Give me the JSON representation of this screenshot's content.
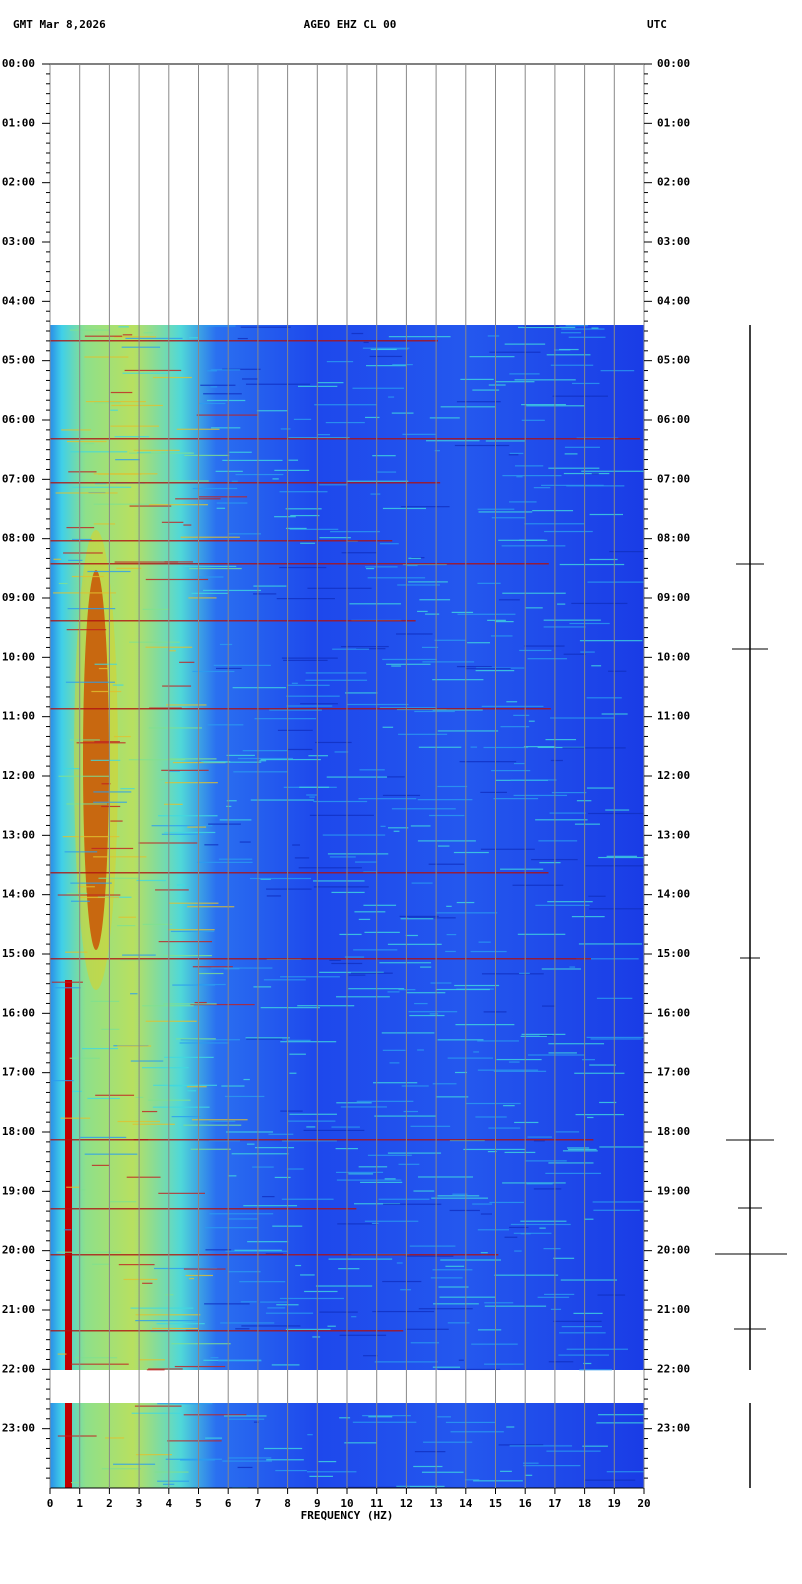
{
  "chart_data": {
    "type": "spectrogram",
    "header_left": "GMT  Mar 8,2026",
    "title": "AGEO EHZ CL 00",
    "header_right": "UTC",
    "xlabel": "FREQUENCY (HZ)",
    "xlim": [
      0,
      20
    ],
    "xticks": [
      0,
      1,
      2,
      3,
      4,
      5,
      6,
      7,
      8,
      9,
      10,
      11,
      12,
      13,
      14,
      15,
      16,
      17,
      18,
      19,
      20
    ],
    "ylim": [
      0,
      24
    ],
    "yticks": [
      {
        "value": 0,
        "label": "00:00"
      },
      {
        "value": 1,
        "label": "01:00"
      },
      {
        "value": 2,
        "label": "02:00"
      },
      {
        "value": 3,
        "label": "03:00"
      },
      {
        "value": 4,
        "label": "04:00"
      },
      {
        "value": 5,
        "label": "05:00"
      },
      {
        "value": 6,
        "label": "06:00"
      },
      {
        "value": 7,
        "label": "07:00"
      },
      {
        "value": 8,
        "label": "08:00"
      },
      {
        "value": 9,
        "label": "09:00"
      },
      {
        "value": 10,
        "label": "10:00"
      },
      {
        "value": 11,
        "label": "11:00"
      },
      {
        "value": 12,
        "label": "12:00"
      },
      {
        "value": 13,
        "label": "13:00"
      },
      {
        "value": 14,
        "label": "14:00"
      },
      {
        "value": 15,
        "label": "15:00"
      },
      {
        "value": 16,
        "label": "16:00"
      },
      {
        "value": 17,
        "label": "17:00"
      },
      {
        "value": 18,
        "label": "18:00"
      },
      {
        "value": 19,
        "label": "19:00"
      },
      {
        "value": 20,
        "label": "20:00"
      },
      {
        "value": 21,
        "label": "21:00"
      },
      {
        "value": 22,
        "label": "22:00"
      },
      {
        "value": 23,
        "label": "23:00"
      }
    ],
    "grid": true
  }
}
